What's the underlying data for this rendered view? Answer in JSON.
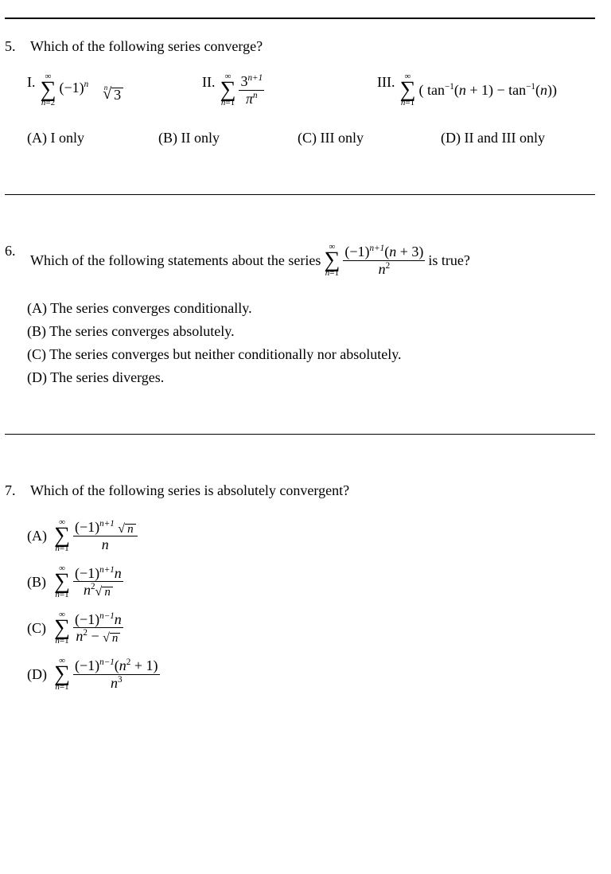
{
  "q5": {
    "number": "5.",
    "stem": "Which of the following series converge?",
    "roman": {
      "i": "I.",
      "ii": "II.",
      "iii": "III."
    },
    "item1": {
      "upper": "∞",
      "lower_var": "n",
      "lower_eq": "=2",
      "term_base": "(−1)",
      "term_exp": "n",
      "root_index": "n",
      "root_radicand": "3"
    },
    "item2": {
      "upper": "∞",
      "lower_var": "n",
      "lower_eq": "=1",
      "num_base": "3",
      "num_exp": "n+1",
      "den_base": "π",
      "den_exp": "n"
    },
    "item3": {
      "upper": "∞",
      "lower_var": "n",
      "lower_eq": "=1",
      "open": "( tan",
      "inv1": "−1",
      "arg1": "(",
      "arg1b": "n",
      "arg1c": " + 1) − tan",
      "inv2": "−1",
      "arg2": "(",
      "arg2b": "n",
      "arg2c": "))"
    },
    "choices": {
      "A": "(A)  I only",
      "B": "(B)  II only",
      "C": "(C)  III only",
      "D": "(D)  II and III only"
    }
  },
  "q6": {
    "number": "6.",
    "stem1": "Which of the following statements about the series",
    "stem2": "is true?",
    "sum": {
      "upper": "∞",
      "lower_var": "n",
      "lower_eq": "=1"
    },
    "frac": {
      "num_a": "(−1)",
      "num_exp": "n+1",
      "num_b": "(",
      "num_n": "n",
      "num_c": " + 3)",
      "den_var": "n",
      "den_exp": "2"
    },
    "choices": {
      "A": "(A) The series converges conditionally.",
      "B": "(B) The series converges absolutely.",
      "C": "(C) The series converges but neither conditionally nor absolutely.",
      "D": "(D) The series diverges."
    }
  },
  "q7": {
    "number": "7.",
    "stem": "Which of the following series is absolutely convergent?",
    "sum": {
      "upper": "∞",
      "lower_var": "n",
      "lower_eq": "=1"
    },
    "labels": {
      "A": "(A)",
      "B": "(B)",
      "C": "(C)",
      "D": "(D)"
    },
    "A": {
      "num_a": "(−1)",
      "num_exp": "n+1",
      "num_rad": "n",
      "den": "n"
    },
    "B": {
      "num_a": "(−1)",
      "num_exp": "n+1",
      "num_b": "n",
      "den_a": "n",
      "den_exp": "2",
      "den_rad": "n"
    },
    "C": {
      "num_a": "(−1)",
      "num_exp": "n−1",
      "num_b": "n",
      "den_a": "n",
      "den_exp": "2",
      "minus": " − ",
      "den_rad": "n"
    },
    "D": {
      "num_a": "(−1)",
      "num_exp": "n−1",
      "num_b": "(",
      "num_n": "n",
      "num_nsq": "2",
      "num_c": " + 1)",
      "den_a": "n",
      "den_exp": "3"
    }
  }
}
